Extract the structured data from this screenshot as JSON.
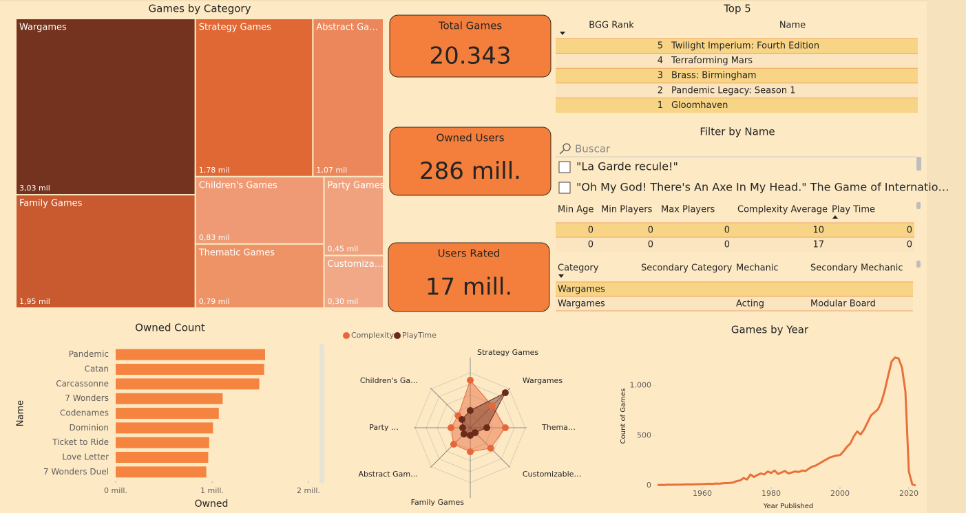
{
  "chart_data": [
    {
      "type": "treemap",
      "title": "Games by Category",
      "categories": [
        "Wargames",
        "Family Games",
        "Strategy Games",
        "Abstract Ga…",
        "Children's Games",
        "Thematic Games",
        "Party Games",
        "Customiza…"
      ],
      "values": [
        3.03,
        1.95,
        1.78,
        1.07,
        0.83,
        0.79,
        0.45,
        0.3
      ],
      "value_labels": [
        "3,03 mil",
        "1,95 mil",
        "1,78 mil",
        "1,07 mil",
        "0,83 mil",
        "0,79 mil",
        "0,45 mil",
        "0,30 mil"
      ],
      "colors": [
        "#74331e",
        "#c95a30",
        "#df6834",
        "#eb875a",
        "#ef9a74",
        "#ee9366",
        "#f0a27f",
        "#f1a887"
      ]
    },
    {
      "type": "bar",
      "title": "Owned Count",
      "x_label": "Owned",
      "y_label": "Name",
      "color": "#f4843f",
      "categories": [
        "Pandemic",
        "Catan",
        "Carcassonne",
        "7 Wonders",
        "Codenames",
        "Dominion",
        "Ticket to Ride",
        "Love Letter",
        "7 Wonders Duel"
      ],
      "values": [
        1550000,
        1540000,
        1490000,
        1110000,
        1070000,
        1010000,
        970000,
        960000,
        940000
      ],
      "xlim": [
        0,
        2100000
      ],
      "xticks": [
        {
          "value": 0,
          "label": "0 mill."
        },
        {
          "value": 1000000,
          "label": "1 mill."
        },
        {
          "value": 2000000,
          "label": "2 mill."
        }
      ]
    },
    {
      "type": "radar",
      "legend": "top-left",
      "rlim": [
        0,
        80
      ],
      "categories": [
        "Strategy Games",
        "Wargames",
        "Thema…",
        "Customizable…",
        "Family Games",
        "Abstract Gam…",
        "Party …",
        "Children's Ga…"
      ],
      "series": [
        {
          "name": "Complexity",
          "color": "#e8673a",
          "values": [
            69,
            45,
            51,
            42,
            35,
            34,
            28,
            25
          ]
        },
        {
          "name": "PlayTime",
          "color": "#6b2a1a",
          "values": [
            25,
            72,
            24,
            10,
            11,
            13,
            11,
            17
          ]
        }
      ]
    },
    {
      "type": "line",
      "title": "Games by Year",
      "x_label": "Year Published",
      "y_label": "Count of Games",
      "color": "#e8703a",
      "grid": false,
      "x": [
        1947,
        1948,
        1949,
        1950,
        1951,
        1952,
        1953,
        1954,
        1955,
        1956,
        1957,
        1958,
        1959,
        1960,
        1961,
        1962,
        1963,
        1964,
        1965,
        1966,
        1967,
        1968,
        1969,
        1970,
        1971,
        1972,
        1973,
        1974,
        1975,
        1976,
        1977,
        1978,
        1979,
        1980,
        1981,
        1982,
        1983,
        1984,
        1985,
        1986,
        1987,
        1988,
        1989,
        1990,
        1991,
        1992,
        1993,
        1994,
        1995,
        1996,
        1997,
        1998,
        1999,
        2000,
        2001,
        2002,
        2003,
        2004,
        2005,
        2006,
        2007,
        2008,
        2009,
        2010,
        2011,
        2012,
        2013,
        2014,
        2015,
        2016,
        2017,
        2018,
        2019,
        2020,
        2021,
        2022
      ],
      "values": [
        5,
        6,
        5,
        8,
        7,
        8,
        9,
        8,
        10,
        11,
        10,
        12,
        13,
        14,
        15,
        17,
        16,
        20,
        18,
        22,
        24,
        26,
        30,
        45,
        50,
        75,
        60,
        110,
        85,
        105,
        120,
        110,
        140,
        125,
        150,
        115,
        130,
        145,
        120,
        130,
        140,
        135,
        150,
        145,
        170,
        190,
        200,
        220,
        240,
        260,
        280,
        290,
        300,
        303,
        340,
        386,
        420,
        490,
        540,
        510,
        560,
        630,
        700,
        730,
        760,
        830,
        950,
        1100,
        1240,
        1280,
        1270,
        1180,
        940,
        140,
        10,
        0
      ],
      "xlim": [
        1947,
        2023
      ],
      "xticks": [
        1960,
        1980,
        2000,
        2020
      ],
      "ylim": [
        0,
        1400
      ],
      "yticks": [
        0,
        500,
        {
          "value": 1000,
          "label": "1.000"
        }
      ]
    }
  ],
  "cards": [
    {
      "title": "Total Games",
      "value": "20.343"
    },
    {
      "title": "Owned Users",
      "value": "286 mill."
    },
    {
      "title": "Users Rated",
      "value": "17 mill."
    }
  ],
  "top5": {
    "title": "Top 5",
    "columns": [
      "BGG Rank",
      "Name"
    ],
    "rows": [
      [
        5,
        "Twilight Imperium: Fourth Edition"
      ],
      [
        4,
        "Terraforming Mars"
      ],
      [
        3,
        "Brass: Birmingham"
      ],
      [
        2,
        "Pandemic Legacy: Season 1"
      ],
      [
        1,
        "Gloomhaven"
      ]
    ]
  },
  "filter": {
    "title": "Filter by Name",
    "placeholder": "Buscar",
    "items": [
      "\"La Garde recule!\"",
      "\"Oh My God! There's An Axe In My Head.\" The Game of Internatio…"
    ]
  },
  "details": {
    "columns": [
      "Min Age",
      "Min Players",
      "Max Players",
      "Complexity Average",
      "Play Time"
    ],
    "rows": [
      [
        0,
        0,
        0,
        10,
        0
      ],
      [
        0,
        0,
        0,
        17,
        0
      ]
    ]
  },
  "categories_table": {
    "columns": [
      "Category",
      "Secondary Category",
      "Mechanic",
      "Secondary Mechanic"
    ],
    "rows": [
      [
        "Wargames",
        null,
        null,
        null
      ],
      [
        "Wargames",
        null,
        "Acting",
        "Modular Board"
      ]
    ]
  }
}
